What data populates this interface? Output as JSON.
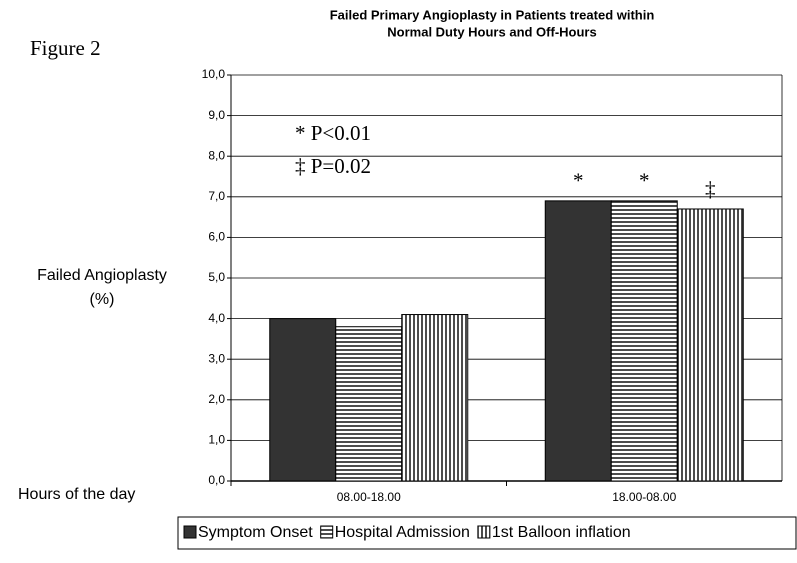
{
  "chart_data": {
    "type": "bar",
    "figure_label": "Figure 2",
    "title": [
      "Failed Primary Angioplasty in Patients treated within",
      "Normal Duty Hours and Off-Hours"
    ],
    "y_label": [
      "Failed Angioplasty",
      "(%)"
    ],
    "x_label": "Hours of the day",
    "categories": [
      "08.00-18.00",
      "18.00-08.00"
    ],
    "series": [
      {
        "name": "Symptom Onset",
        "color": "#333333",
        "pattern": "solid",
        "values": [
          4.0,
          6.9
        ]
      },
      {
        "name": "Hospital Admission",
        "color": "#000000",
        "pattern": "horizontal",
        "values": [
          3.8,
          6.9
        ]
      },
      {
        "name": "1st Balloon inflation",
        "color": "#000000",
        "pattern": "vertical",
        "values": [
          4.1,
          6.7
        ]
      }
    ],
    "significance": [
      "*",
      "*",
      "‡"
    ],
    "annotations": [
      "* P<0.01",
      "‡ P=0.02"
    ],
    "ylim": [
      0,
      10
    ],
    "yticks": [
      {
        "value": 0,
        "label": "0,0"
      },
      {
        "value": 1,
        "label": "1,0"
      },
      {
        "value": 2,
        "label": "2,0"
      },
      {
        "value": 3,
        "label": "3,0"
      },
      {
        "value": 4,
        "label": "4,0"
      },
      {
        "value": 5,
        "label": "5,0"
      },
      {
        "value": 6,
        "label": "6,0"
      },
      {
        "value": 7,
        "label": "7,0"
      },
      {
        "value": 8,
        "label": "8,0"
      },
      {
        "value": 9,
        "label": "9,0"
      },
      {
        "value": 10,
        "label": "10,0"
      }
    ],
    "grid": true,
    "legend": "bottom"
  }
}
